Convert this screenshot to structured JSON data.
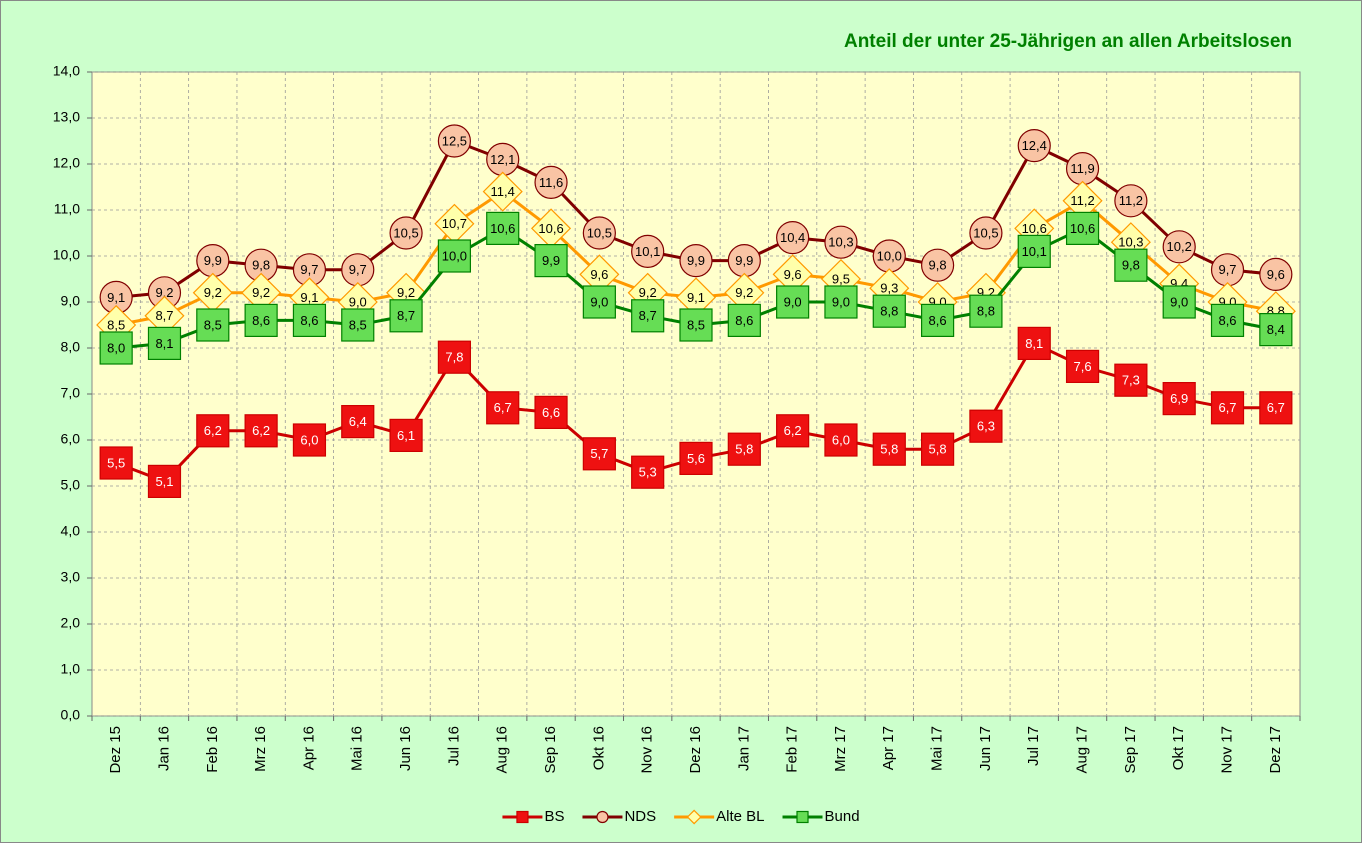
{
  "chart_data": {
    "type": "line",
    "title": "Anteil der unter 25-Jährigen an allen Arbeitslosen",
    "categories": [
      "Dez 15",
      "Jan 16",
      "Feb 16",
      "Mrz 16",
      "Apr 16",
      "Mai 16",
      "Jun 16",
      "Jul 16",
      "Aug 16",
      "Sep 16",
      "Okt 16",
      "Nov 16",
      "Dez 16",
      "Jan 17",
      "Feb 17",
      "Mrz 17",
      "Apr 17",
      "Mai 17",
      "Jun 17",
      "Jul 17",
      "Aug 17",
      "Sep 17",
      "Okt 17",
      "Nov 17",
      "Dez 17"
    ],
    "ylim": [
      0,
      14
    ],
    "yticks": [
      {
        "value": 0,
        "label": "0,0"
      },
      {
        "value": 1,
        "label": "1,0"
      },
      {
        "value": 2,
        "label": "2,0"
      },
      {
        "value": 3,
        "label": "3,0"
      },
      {
        "value": 4,
        "label": "4,0"
      },
      {
        "value": 5,
        "label": "5,0"
      },
      {
        "value": 6,
        "label": "6,0"
      },
      {
        "value": 7,
        "label": "7,0"
      },
      {
        "value": 8,
        "label": "8,0"
      },
      {
        "value": 9,
        "label": "9,0"
      },
      {
        "value": 10,
        "label": "10,0"
      },
      {
        "value": 11,
        "label": "11,0"
      },
      {
        "value": 12,
        "label": "12,0"
      },
      {
        "value": 13,
        "label": "13,0"
      },
      {
        "value": 14,
        "label": "14,0"
      }
    ],
    "grid": true,
    "legend": "bottom",
    "series": [
      {
        "name": "BS",
        "color": "#cc0000",
        "marker": "square",
        "marker_fill": "#ee1111",
        "label_color": "#ffffff",
        "values": [
          5.5,
          5.1,
          6.2,
          6.2,
          6.0,
          6.4,
          6.1,
          7.8,
          6.7,
          6.6,
          5.7,
          5.3,
          5.6,
          5.8,
          6.2,
          6.0,
          5.8,
          5.8,
          6.3,
          8.1,
          7.6,
          7.3,
          6.9,
          6.7,
          6.7
        ],
        "value_labels": [
          "5,5",
          "5,1",
          "6,2",
          "6,2",
          "6,0",
          "6,4",
          "6,1",
          "7,8",
          "6,7",
          "6,6",
          "5,7",
          "5,3",
          "5,6",
          "5,8",
          "6,2",
          "6,0",
          "5,8",
          "5,8",
          "6,3",
          "8,1",
          "7,6",
          "7,3",
          "6,9",
          "6,7",
          "6,7"
        ]
      },
      {
        "name": "NDS",
        "color": "#800000",
        "marker": "circle",
        "marker_fill": "#f9c4a4",
        "label_color": "#000000",
        "values": [
          9.1,
          9.2,
          9.9,
          9.8,
          9.7,
          9.7,
          10.5,
          12.5,
          12.1,
          11.6,
          10.5,
          10.1,
          9.9,
          9.9,
          10.4,
          10.3,
          10.0,
          9.8,
          10.5,
          12.4,
          11.9,
          11.2,
          10.2,
          9.7,
          9.6
        ],
        "value_labels": [
          "9,1",
          "9,2",
          "9,9",
          "9,8",
          "9,7",
          "9,7",
          "10,5",
          "12,5",
          "12,1",
          "11,6",
          "10,5",
          "10,1",
          "9,9",
          "9,9",
          "10,4",
          "10,3",
          "10,0",
          "9,8",
          "10,5",
          "12,4",
          "11,9",
          "11,2",
          "10,2",
          "9,7",
          "9,6"
        ]
      },
      {
        "name": "Alte BL",
        "color": "#ff9900",
        "marker": "diamond",
        "marker_fill": "#ffffaa",
        "label_color": "#000000",
        "values": [
          8.5,
          8.7,
          9.2,
          9.2,
          9.1,
          9.0,
          9.2,
          10.7,
          11.4,
          10.6,
          9.6,
          9.2,
          9.1,
          9.2,
          9.6,
          9.5,
          9.3,
          9.0,
          9.2,
          10.6,
          11.2,
          10.3,
          9.4,
          9.0,
          8.8
        ],
        "value_labels": [
          "8,5",
          "8,7",
          "9,2",
          "9,2",
          "9,1",
          "9,0",
          "9,2",
          "10,7",
          "11,4",
          "10,6",
          "9,6",
          "9,2",
          "9,1",
          "9,2",
          "9,6",
          "9,5",
          "9,3",
          "9,0",
          "9,2",
          "10,6",
          "11,2",
          "10,3",
          "9,4",
          "9,0",
          "8,8"
        ]
      },
      {
        "name": "Bund",
        "color": "#008000",
        "marker": "square",
        "marker_fill": "#66dd55",
        "label_color": "#000000",
        "values": [
          8.0,
          8.1,
          8.5,
          8.6,
          8.6,
          8.5,
          8.7,
          10.0,
          10.6,
          9.9,
          9.0,
          8.7,
          8.5,
          8.6,
          9.0,
          9.0,
          8.8,
          8.6,
          8.8,
          10.1,
          10.6,
          9.8,
          9.0,
          8.6,
          8.4
        ],
        "value_labels": [
          "8,0",
          "8,1",
          "8,5",
          "8,6",
          "8,6",
          "8,5",
          "8,7",
          "10,0",
          "10,6",
          "9,9",
          "9,0",
          "8,7",
          "8,5",
          "8,6",
          "9,0",
          "9,0",
          "8,8",
          "8,6",
          "8,8",
          "10,1",
          "10,6",
          "9,8",
          "9,0",
          "8,6",
          "8,4"
        ]
      }
    ]
  }
}
